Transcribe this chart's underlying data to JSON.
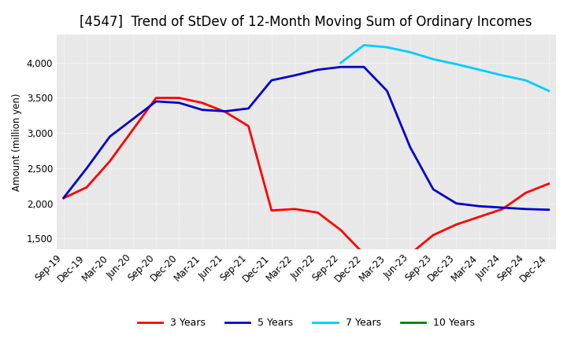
{
  "title": "[4547]  Trend of StDev of 12-Month Moving Sum of Ordinary Incomes",
  "ylabel": "Amount (million yen)",
  "line_colors": {
    "3y": "#ff0000",
    "5y": "#0000cd",
    "7y": "#00ccff",
    "10y": "#008000"
  },
  "legend_labels": [
    "3 Years",
    "5 Years",
    "7 Years",
    "10 Years"
  ],
  "ylim": [
    1350,
    4400
  ],
  "yticks": [
    1500,
    2000,
    2500,
    3000,
    3500,
    4000
  ],
  "background_color": "#ffffff",
  "plot_bg_color": "#e8e8e8",
  "title_fontsize": 12,
  "axis_fontsize": 8.5,
  "x_labels": [
    "Sep-19",
    "Dec-19",
    "Mar-20",
    "Jun-20",
    "Sep-20",
    "Dec-20",
    "Mar-21",
    "Jun-21",
    "Sep-21",
    "Dec-21",
    "Mar-22",
    "Jun-22",
    "Sep-22",
    "Dec-22",
    "Mar-23",
    "Jun-23",
    "Sep-23",
    "Dec-23",
    "Mar-24",
    "Jun-24",
    "Sep-24",
    "Dec-24"
  ],
  "3y": [
    2075,
    2230,
    2600,
    3050,
    3500,
    3500,
    3430,
    3300,
    3100,
    1900,
    1920,
    1870,
    1620,
    1280,
    1270,
    1280,
    1550,
    1700,
    1810,
    1920,
    2150,
    2280
  ],
  "5y": [
    2080,
    2500,
    2950,
    3200,
    3450,
    3430,
    3330,
    3310,
    3350,
    3750,
    3820,
    3900,
    3940,
    3940,
    3600,
    2800,
    2200,
    2000,
    1960,
    1940,
    1920,
    1910
  ],
  "7y": [
    null,
    null,
    null,
    null,
    null,
    null,
    null,
    null,
    null,
    null,
    null,
    null,
    4000,
    4250,
    4220,
    4150,
    4050,
    3980,
    3900,
    3820,
    3750,
    3600
  ],
  "10y": [
    null,
    null,
    null,
    null,
    null,
    null,
    null,
    null,
    null,
    null,
    null,
    null,
    null,
    null,
    null,
    null,
    null,
    null,
    null,
    null,
    null,
    null
  ]
}
